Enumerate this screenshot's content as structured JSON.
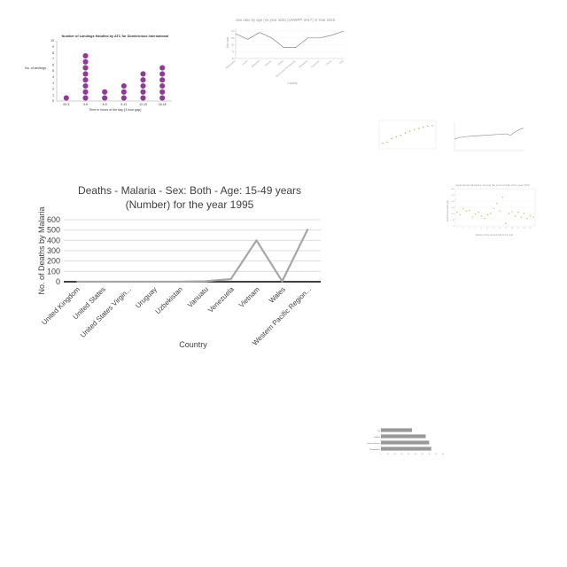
{
  "chart_data": [
    {
      "type": "scatter",
      "style": "dot-plot",
      "title": "Number of Landings Handled by ATC for Dominicious International",
      "xlabel": "Time in hours of the day (3 hour gap)",
      "ylabel": "No. of landings",
      "categories": [
        "00-3",
        "3-6",
        "6-9",
        "9-12",
        "12-15",
        "15-18"
      ],
      "values": [
        1,
        8,
        2,
        3,
        5,
        6
      ],
      "ylim": [
        0,
        10
      ],
      "yticks": [
        0,
        1,
        2,
        3,
        4,
        5,
        6,
        7,
        8,
        9,
        10
      ],
      "color": "#8e3a96"
    },
    {
      "type": "line",
      "title": "Sex ratio by age (15 year olds) (UNWPP, 2017) in Year 2010",
      "xlabel": "Country",
      "ylabel": "Sex ratio",
      "categories": [
        "Afghanistan",
        "Aruba",
        "Bahamas",
        "Bahrain",
        "Belize",
        "Bosnia and Herzegovina",
        "Botswana",
        "Cameroon",
        "Ghana",
        "Haiti"
      ],
      "values": [
        108,
        104,
        109,
        105,
        98,
        98,
        105,
        105,
        107,
        110
      ],
      "ylim": [
        90,
        112
      ],
      "color": "#888888"
    },
    {
      "type": "scatter",
      "title": "",
      "categories": [
        "1",
        "2",
        "3",
        "4",
        "5",
        "6",
        "7",
        "8",
        "9",
        "10",
        "11",
        "12"
      ],
      "values": [
        1.0,
        1.2,
        1.8,
        2.1,
        2.4,
        2.8,
        3.1,
        3.4,
        3.6,
        3.8,
        4.0,
        4.1
      ],
      "ylim": [
        0,
        5
      ],
      "color": "#c9b86a"
    },
    {
      "type": "line",
      "title": "",
      "values": [
        40,
        46,
        48,
        50,
        51,
        52,
        53,
        54,
        55,
        56,
        57,
        58,
        59,
        54,
        66,
        74,
        80
      ],
      "ylim": [
        0,
        100
      ],
      "color": "#888888"
    },
    {
      "type": "scatter",
      "title": "Agricultural Indicators: Among the second half of the year 1975",
      "xlabel": "Weeks of the second half of the year",
      "ylabel": "Agricultural output (kg)",
      "x": [
        1,
        2,
        3,
        4,
        5,
        6,
        7,
        8,
        9,
        10,
        11,
        12,
        13,
        14,
        15,
        16,
        17,
        18,
        19,
        20,
        21,
        22,
        23,
        24,
        25,
        26
      ],
      "values": [
        110,
        90,
        140,
        120,
        125,
        70,
        95,
        110,
        80,
        60,
        90,
        100,
        140,
        180,
        120,
        230,
        20,
        100,
        115,
        80,
        110,
        70,
        100,
        60,
        80,
        70
      ],
      "ylim": [
        0,
        300
      ],
      "color": "#c9b86a"
    },
    {
      "type": "bar",
      "orientation": "horizontal",
      "title": "",
      "categories": [
        "Fiji",
        "Kiribati",
        "Guinea-Bissau",
        "Bangladesh"
      ],
      "values": [
        45,
        65,
        70,
        73
      ],
      "xlim": [
        0,
        90
      ],
      "color": "#999999"
    },
    {
      "type": "line",
      "title": "Deaths - Malaria - Sex: Both - Age: 15-49 years (Number) for the year 1995",
      "xlabel": "Country",
      "ylabel": "No. of Deaths by Malaria",
      "categories": [
        "United Kingdom",
        "United States",
        "United States Virgin...",
        "Uruguay",
        "Uzbekistan",
        "Vanuatu",
        "Venezuela",
        "Vietnam",
        "Wales",
        "Western Pacific Region..."
      ],
      "values": [
        0,
        0,
        0,
        0,
        0,
        5,
        25,
        400,
        5,
        510
      ],
      "ylim": [
        0,
        600
      ],
      "yticks": [
        0,
        100,
        200,
        300,
        400,
        500,
        600
      ],
      "grid": true,
      "color": "#a6a6a6"
    }
  ]
}
